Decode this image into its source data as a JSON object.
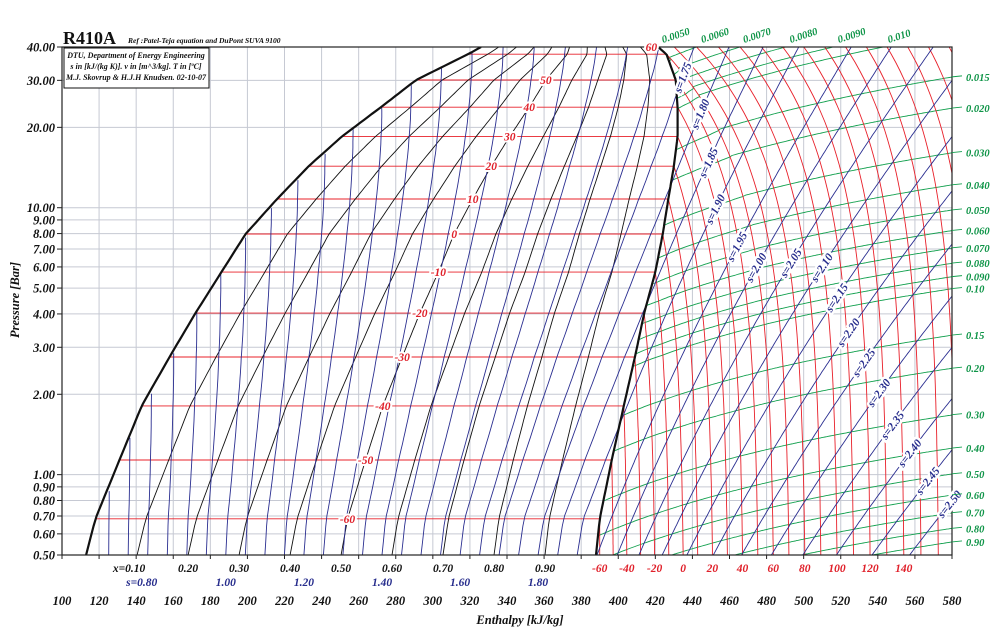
{
  "chart_data": {
    "type": "line",
    "title": "R410A",
    "subtitle": "Ref :Patel-Teja equation and DuPont SUVA 9100",
    "info_box": [
      "DTU, Department of Energy  Engineering",
      "s in [kJ/(kg K)]. v in [m^3/kg]. T in [ºC]",
      "M.J. Skovrup & H.J.H Knudsen. 02-10-07"
    ],
    "xlabel": "Enthalpy [kJ/kg]",
    "ylabel": "Pressure [Bar]",
    "xlim": [
      100,
      580
    ],
    "ylim": [
      0.5,
      40
    ],
    "yscale": "log",
    "grid": true,
    "x_ticks": [
      {
        "value": 100,
        "label": "100"
      },
      {
        "value": 120,
        "label": "120"
      },
      {
        "value": 140,
        "label": "140"
      },
      {
        "value": 160,
        "label": "160"
      },
      {
        "value": 180,
        "label": "180"
      },
      {
        "value": 200,
        "label": "200"
      },
      {
        "value": 220,
        "label": "220"
      },
      {
        "value": 240,
        "label": "240"
      },
      {
        "value": 260,
        "label": "260"
      },
      {
        "value": 280,
        "label": "280"
      },
      {
        "value": 300,
        "label": "300"
      },
      {
        "value": 320,
        "label": "320"
      },
      {
        "value": 340,
        "label": "340"
      },
      {
        "value": 360,
        "label": "360"
      },
      {
        "value": 380,
        "label": "380"
      },
      {
        "value": 400,
        "label": "400"
      },
      {
        "value": 420,
        "label": "420"
      },
      {
        "value": 440,
        "label": "440"
      },
      {
        "value": 460,
        "label": "460"
      },
      {
        "value": 480,
        "label": "480"
      },
      {
        "value": 500,
        "label": "500"
      },
      {
        "value": 520,
        "label": "520"
      },
      {
        "value": 540,
        "label": "540"
      },
      {
        "value": 560,
        "label": "560"
      },
      {
        "value": 580,
        "label": "580"
      }
    ],
    "y_ticks": [
      {
        "value": 40,
        "label": "40.00"
      },
      {
        "value": 30,
        "label": "30.00"
      },
      {
        "value": 20,
        "label": "20.00"
      },
      {
        "value": 10,
        "label": "10.00"
      },
      {
        "value": 9,
        "label": "9.00"
      },
      {
        "value": 8,
        "label": "8.00"
      },
      {
        "value": 7,
        "label": "7.00"
      },
      {
        "value": 6,
        "label": "6.00"
      },
      {
        "value": 5,
        "label": "5.00"
      },
      {
        "value": 4,
        "label": "4.00"
      },
      {
        "value": 3,
        "label": "3.00"
      },
      {
        "value": 2,
        "label": "2.00"
      },
      {
        "value": 1,
        "label": "1.00"
      },
      {
        "value": 0.9,
        "label": "0.90"
      },
      {
        "value": 0.8,
        "label": "0.80"
      },
      {
        "value": 0.7,
        "label": "0.70"
      },
      {
        "value": 0.6,
        "label": "0.60"
      },
      {
        "value": 0.5,
        "label": "0.50"
      }
    ],
    "saturation": {
      "T": [
        -62.6,
        -60,
        -50,
        -40,
        -30,
        -20,
        -10,
        0,
        10,
        20,
        30,
        40,
        50,
        60,
        62.8
      ],
      "P": [
        0.5,
        0.683,
        1.135,
        1.81,
        2.76,
        4.03,
        5.74,
        7.97,
        10.78,
        14.3,
        18.5,
        23.8,
        30.1,
        37.6,
        40
      ],
      "hf": [
        113,
        118,
        131,
        143,
        158,
        172,
        186,
        199,
        216,
        233,
        251,
        272,
        291,
        319,
        326
      ],
      "hg": [
        388,
        390,
        396.5,
        403,
        409,
        414,
        420,
        424,
        427,
        430,
        432,
        432,
        431,
        426,
        421.5
      ]
    },
    "isotherms": {
      "unit": "°C",
      "values": [
        -60,
        -50,
        -40,
        -30,
        -20,
        -10,
        0,
        10,
        20,
        30,
        40,
        50,
        60,
        70,
        80,
        90,
        100,
        110,
        120,
        130,
        140,
        150,
        160,
        170,
        180,
        190,
        200
      ],
      "dome_labels": [
        {
          "value": -60,
          "label": "-60"
        },
        {
          "value": -50,
          "label": "-50"
        },
        {
          "value": -40,
          "label": "-40"
        },
        {
          "value": -30,
          "label": "-30"
        },
        {
          "value": -20,
          "label": "-20"
        },
        {
          "value": -10,
          "label": "-10"
        },
        {
          "value": 0,
          "label": "0"
        },
        {
          "value": 10,
          "label": "10"
        },
        {
          "value": 20,
          "label": "20"
        },
        {
          "value": 30,
          "label": "30"
        },
        {
          "value": 40,
          "label": "40"
        },
        {
          "value": 50,
          "label": "50"
        },
        {
          "value": 60,
          "label": "60"
        }
      ],
      "bottom_labels": [
        {
          "value": -60,
          "label": "-60"
        },
        {
          "value": -40,
          "label": "-40"
        },
        {
          "value": -20,
          "label": "-20"
        },
        {
          "value": 0,
          "label": "0"
        },
        {
          "value": 20,
          "label": "20"
        },
        {
          "value": 40,
          "label": "40"
        },
        {
          "value": 60,
          "label": "60"
        },
        {
          "value": 80,
          "label": "80"
        },
        {
          "value": 100,
          "label": "100"
        },
        {
          "value": 120,
          "label": "120"
        },
        {
          "value": 140,
          "label": "140"
        }
      ]
    },
    "quality": {
      "values": [
        0.1,
        0.2,
        0.3,
        0.4,
        0.5,
        0.6,
        0.7,
        0.8,
        0.9
      ],
      "labels": [
        "x=0.10",
        "0.20",
        "0.30",
        "0.40",
        "0.50",
        "0.60",
        "0.70",
        "0.80",
        "0.90"
      ]
    },
    "isentropes": {
      "unit": "kJ/(kg K)",
      "dome_values": [
        0.65,
        0.7,
        0.75,
        0.8,
        0.85,
        0.9,
        0.95,
        1.0,
        1.05,
        1.1,
        1.15,
        1.2,
        1.25,
        1.3,
        1.35,
        1.4,
        1.45,
        1.5,
        1.55,
        1.6,
        1.65,
        1.7,
        1.75,
        1.8,
        1.85,
        1.9
      ],
      "bottom_labels": [
        {
          "value": 0.8,
          "label": "s=0.80"
        },
        {
          "value": 1.0,
          "label": "1.00"
        },
        {
          "value": 1.2,
          "label": "1.20"
        },
        {
          "value": 1.4,
          "label": "1.40"
        },
        {
          "value": 1.6,
          "label": "1.60"
        },
        {
          "value": 1.8,
          "label": "1.80"
        }
      ],
      "vapor_values": [
        1.75,
        1.8,
        1.85,
        1.9,
        1.95,
        2.0,
        2.05,
        2.1,
        2.15,
        2.2,
        2.25,
        2.3,
        2.35,
        2.4,
        2.45,
        2.5
      ],
      "vapor_labels": [
        "s=1.75",
        "s=1.80",
        "s=1.85",
        "s=1.90",
        "s=1.95",
        "s=2.00",
        "s=2.05",
        "s=2.10",
        "s=2.15",
        "s=2.20",
        "s=2.25",
        "s=2.30",
        "s=2.35",
        "s=2.40",
        "s=2.45",
        "s=2.50"
      ]
    },
    "isochores": {
      "unit": "m^3/kg",
      "values": [
        0.005,
        0.006,
        0.007,
        0.008,
        0.009,
        0.01,
        0.015,
        0.02,
        0.03,
        0.04,
        0.05,
        0.06,
        0.07,
        0.08,
        0.09,
        0.1,
        0.15,
        0.2,
        0.3,
        0.4,
        0.5,
        0.6,
        0.7,
        0.8,
        0.9
      ],
      "labels": [
        "0.0050",
        "0.0060",
        "0.0070",
        "0.0080",
        "0.0090",
        "0.010",
        "0.015",
        "0.020",
        "0.030",
        "0.040",
        "0.050",
        "0.060",
        "0.070",
        "0.080",
        "0.090",
        "0.10",
        "0.15",
        "0.20",
        "0.30",
        "0.40",
        "0.50",
        "0.60",
        "0.70",
        "0.80",
        "0.90"
      ]
    },
    "colors": {
      "saturation": "#111111",
      "quality": "#111111",
      "isotherm": "#e8202a",
      "isentrope": "#2a2e90",
      "isochore": "#12a04e",
      "grid": "#c6c9d3"
    }
  }
}
